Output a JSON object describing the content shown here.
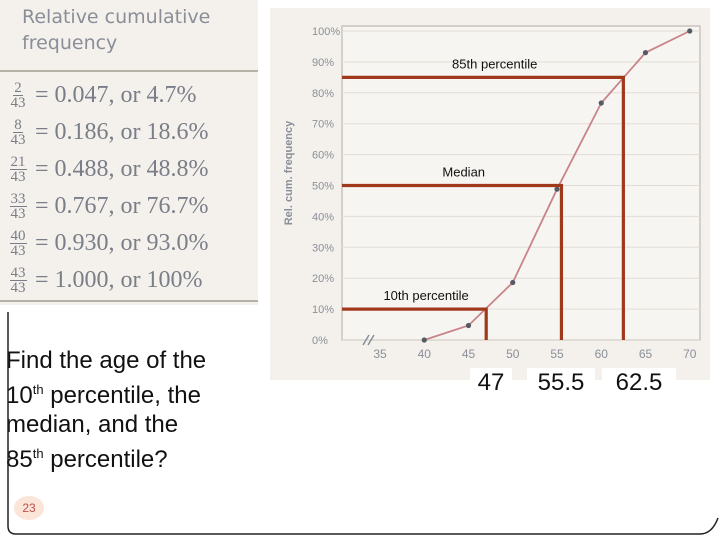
{
  "table": {
    "title": "Relative cumulative frequency",
    "rows": [
      {
        "num": "2",
        "den": "43",
        "text": "= 0.047, or 4.7%"
      },
      {
        "num": "8",
        "den": "43",
        "text": "= 0.186, or 18.6%"
      },
      {
        "num": "21",
        "den": "43",
        "text": "= 0.488, or 48.8%"
      },
      {
        "num": "33",
        "den": "43",
        "text": "= 0.767, or 76.7%"
      },
      {
        "num": "40",
        "den": "43",
        "text": "= 0.930, or 93.0%"
      },
      {
        "num": "43",
        "den": "43",
        "text": "= 1.000, or 100%"
      }
    ]
  },
  "chart_data": {
    "type": "line",
    "ylabel": "Rel. cum. frequency",
    "xlabel": "",
    "xlim": [
      35,
      70
    ],
    "ylim": [
      0,
      100
    ],
    "x_ticks": [
      "35",
      "40",
      "45",
      "50",
      "55",
      "60",
      "65",
      "70"
    ],
    "y_ticks": [
      "0%",
      "10%",
      "20%",
      "30%",
      "40%",
      "50%",
      "60%",
      "70%",
      "80%",
      "90%",
      "100%"
    ],
    "x": [
      40,
      45,
      50,
      55,
      60,
      65,
      70
    ],
    "y": [
      0,
      4.7,
      18.6,
      48.8,
      76.7,
      93.0,
      100
    ],
    "annotations": [
      {
        "label": "85th percentile",
        "y": 85,
        "x": 62.5
      },
      {
        "label": "Median",
        "y": 50,
        "x": 55.5
      },
      {
        "label": "10th percentile",
        "y": 10,
        "x": 47
      }
    ],
    "line_color": "#c9848a",
    "guide_color": "#a0391c"
  },
  "question": {
    "line1": "Find the age of the",
    "line2_num": "10",
    "line2_sup": "th",
    "line2_rest": " percentile, the",
    "line3": "median, and the",
    "line4_num": "85",
    "line4_sup": "th",
    "line4_rest": " percentile?"
  },
  "answers": [
    "47",
    "55.5",
    "62.5"
  ],
  "slide_number": "23"
}
